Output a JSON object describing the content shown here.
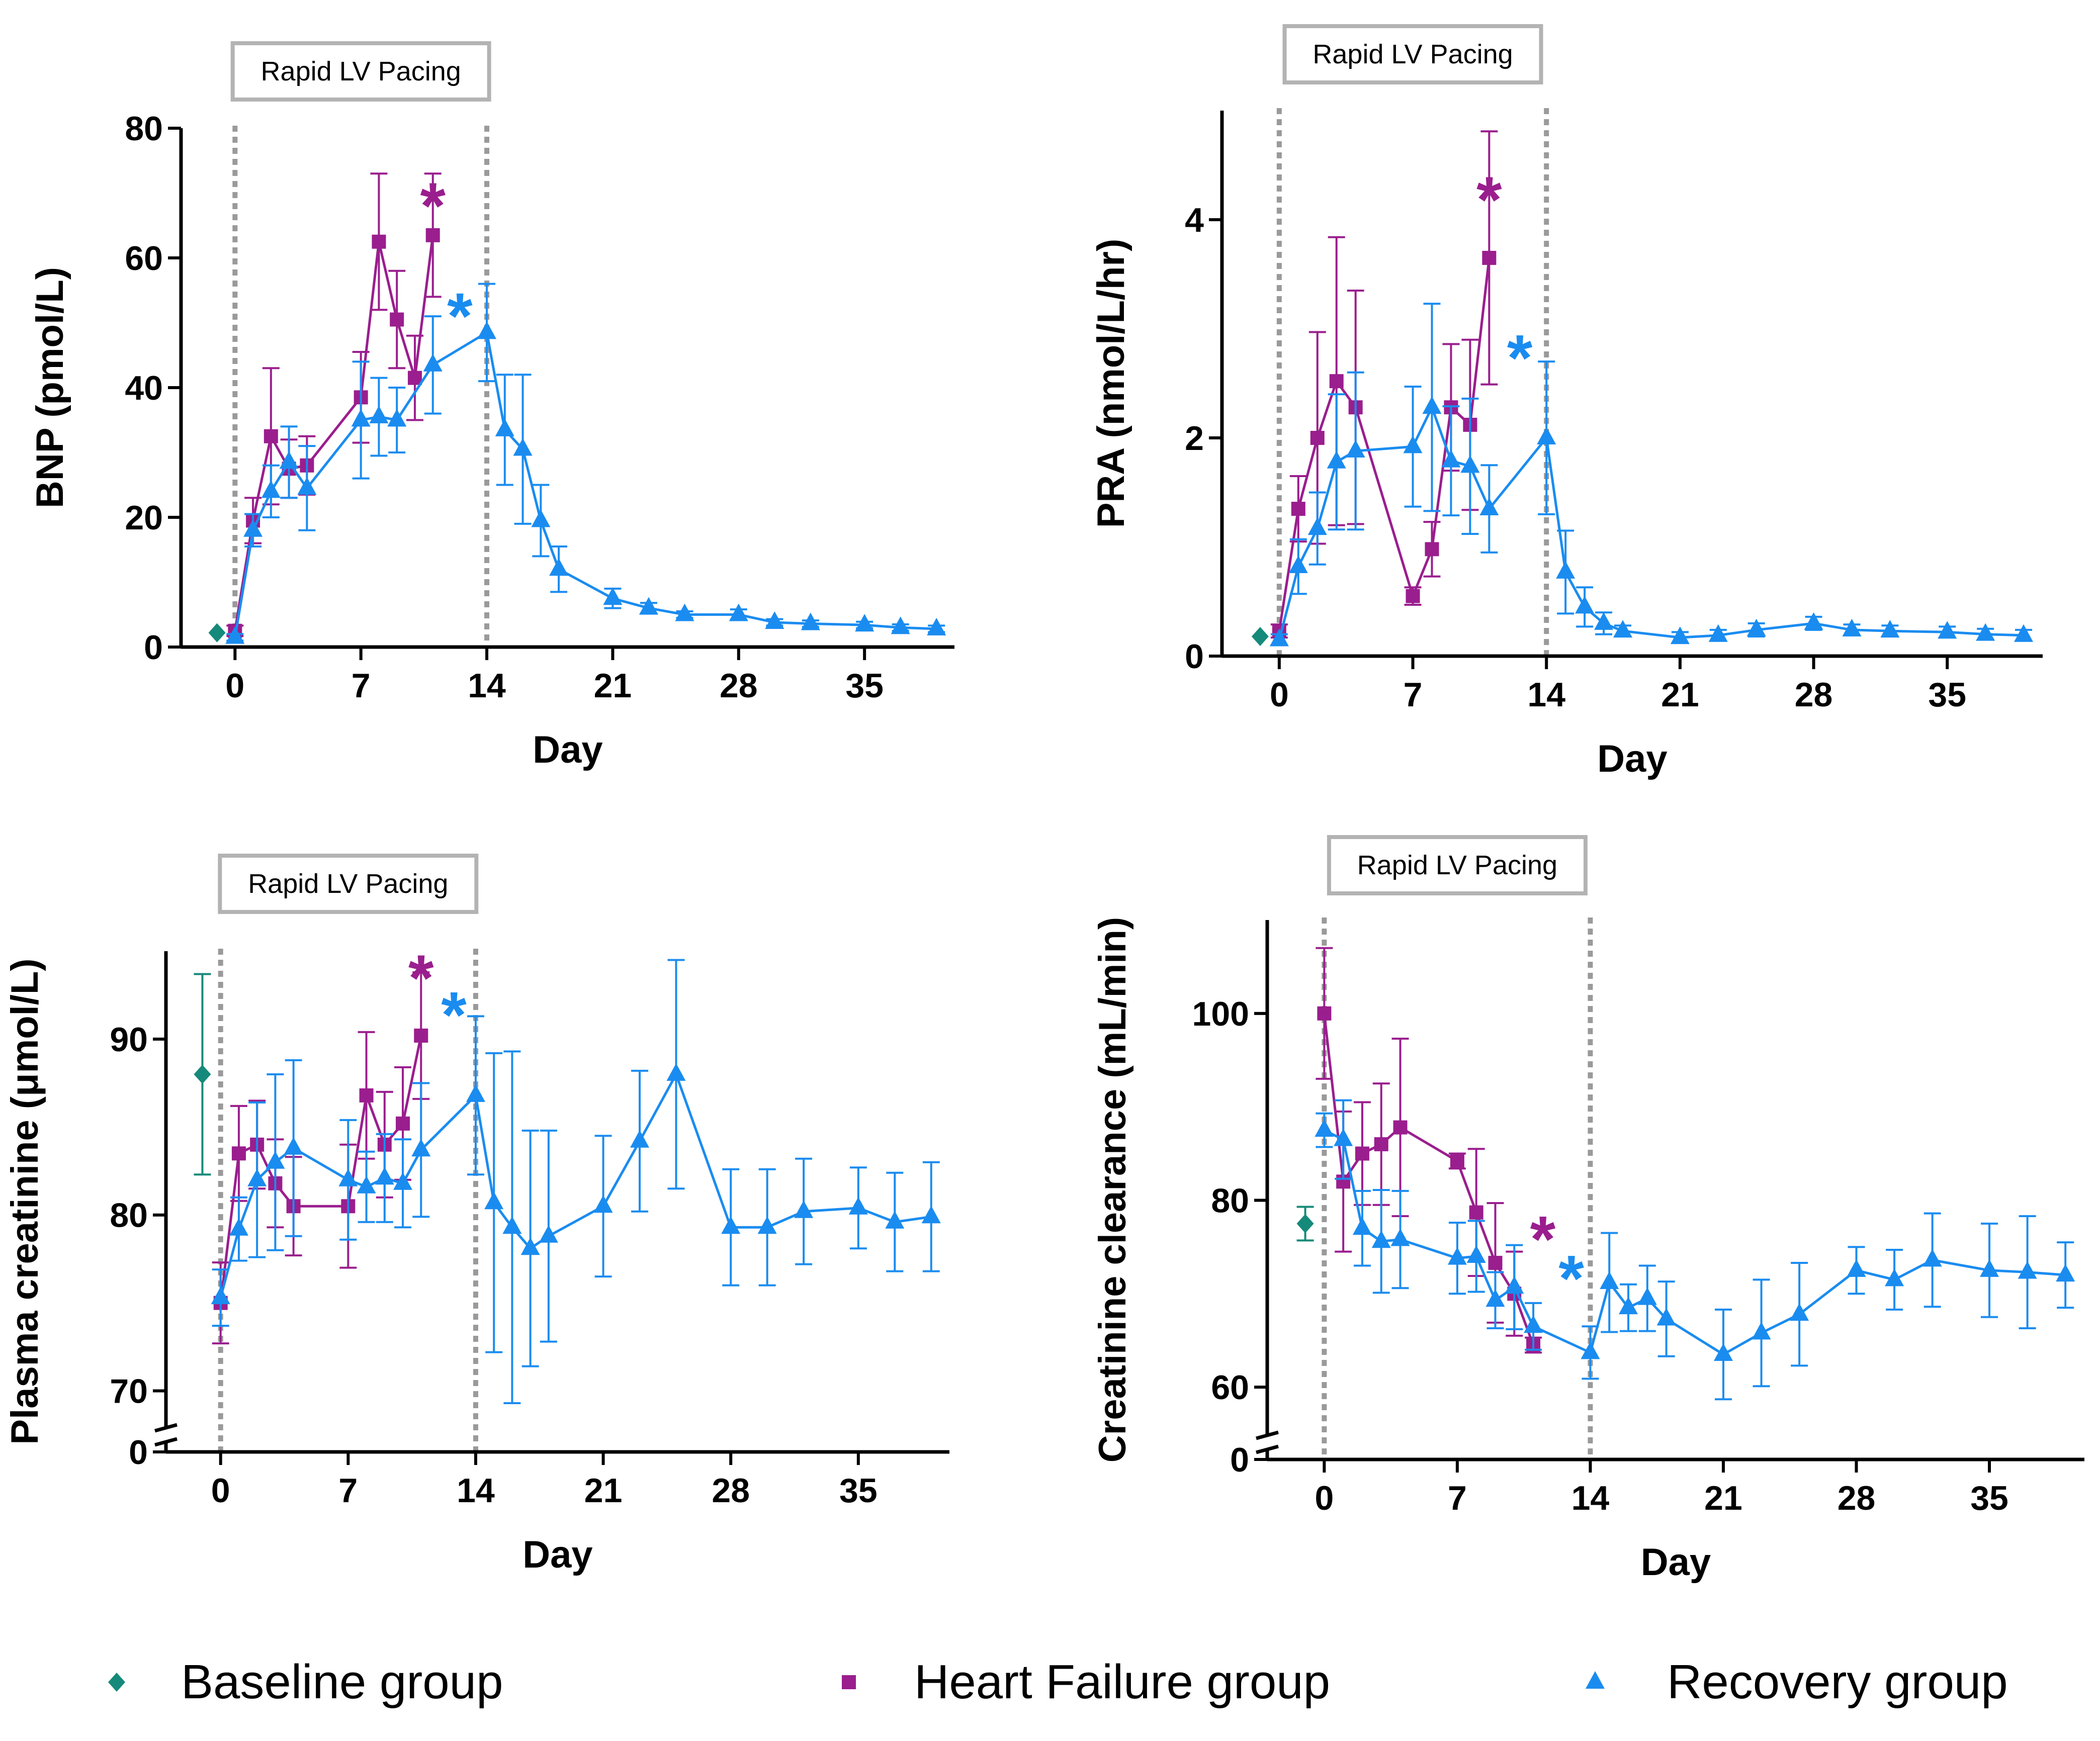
{
  "colors": {
    "baseline": "#158a7a",
    "heart_failure": "#9a1e8e",
    "recovery": "#1a8cf0",
    "pacing_line": "#9a9a9a",
    "pacing_box_border": "#b3b3b3"
  },
  "legend": [
    {
      "key": "baseline",
      "label": "Baseline group",
      "marker": "diamond"
    },
    {
      "key": "heart_failure",
      "label": "Heart Failure group",
      "marker": "square"
    },
    {
      "key": "recovery",
      "label": "Recovery group",
      "marker": "triangle"
    }
  ],
  "chart_data": [
    {
      "type": "line",
      "title": "BNP",
      "xlabel": "Day",
      "ylabel": "BNP (pmol/L)",
      "pacing_label": "Rapid LV Pacing",
      "pacing_days": [
        0,
        14
      ],
      "xlim": [
        -3,
        40
      ],
      "ylim": [
        0,
        80
      ],
      "xticks": [
        0,
        7,
        14,
        21,
        28,
        35
      ],
      "yticks": [
        0,
        20,
        40,
        60,
        80
      ],
      "axis_break": false,
      "series": [
        {
          "key": "baseline",
          "name": "Baseline group",
          "points": [
            {
              "x": -1,
              "y": 2.2,
              "err": 0
            }
          ]
        },
        {
          "key": "heart_failure",
          "name": "Heart Failure group",
          "points": [
            {
              "x": 0,
              "y": 2.5,
              "err": 0.8
            },
            {
              "x": 1,
              "y": 19.5,
              "err": 3.5
            },
            {
              "x": 2,
              "y": 32.5,
              "err": 10.5
            },
            {
              "x": 3,
              "y": 27.5,
              "err": 4.5
            },
            {
              "x": 4,
              "y": 28,
              "err": 4.5
            },
            {
              "x": 7,
              "y": 38.5,
              "err": 7
            },
            {
              "x": 8,
              "y": 62.5,
              "err": 10.5
            },
            {
              "x": 9,
              "y": 50.5,
              "err": 7.5
            },
            {
              "x": 10,
              "y": 41.5,
              "err": 6.5
            },
            {
              "x": 11,
              "y": 63.5,
              "err": 9.5
            }
          ]
        },
        {
          "key": "recovery",
          "name": "Recovery group",
          "points": [
            {
              "x": 0,
              "y": 1.5,
              "err": 0.5
            },
            {
              "x": 1,
              "y": 18,
              "err": 2.5
            },
            {
              "x": 2,
              "y": 24,
              "err": 4
            },
            {
              "x": 3,
              "y": 28.5,
              "err": 5.5
            },
            {
              "x": 4,
              "y": 24.5,
              "err": 6.5
            },
            {
              "x": 7,
              "y": 35,
              "err": 9
            },
            {
              "x": 8,
              "y": 35.5,
              "err": 6
            },
            {
              "x": 9,
              "y": 35,
              "err": 5
            },
            {
              "x": 11,
              "y": 43.5,
              "err": 7.5
            },
            {
              "x": 14,
              "y": 48.5,
              "err": 7.5
            },
            {
              "x": 15,
              "y": 33.5,
              "err": 8.5
            },
            {
              "x": 16,
              "y": 30.5,
              "err": 11.5
            },
            {
              "x": 17,
              "y": 19.5,
              "err": 5.5
            },
            {
              "x": 18,
              "y": 12,
              "err": 3.5
            },
            {
              "x": 21,
              "y": 7.5,
              "err": 1.5
            },
            {
              "x": 23,
              "y": 6,
              "err": 0.8
            },
            {
              "x": 25,
              "y": 5,
              "err": 0.5
            },
            {
              "x": 28,
              "y": 5,
              "err": 0.8
            },
            {
              "x": 30,
              "y": 3.8,
              "err": 0.5
            },
            {
              "x": 32,
              "y": 3.6,
              "err": 0.5
            },
            {
              "x": 35,
              "y": 3.4,
              "err": 0.5
            },
            {
              "x": 37,
              "y": 3,
              "err": 0.5
            },
            {
              "x": 39,
              "y": 2.8,
              "err": 0.5
            }
          ]
        }
      ],
      "annotations": [
        {
          "text": "*",
          "key": "heart_failure",
          "x": 11,
          "y": 70
        },
        {
          "text": "*",
          "key": "recovery",
          "x": 12.5,
          "y": 53
        }
      ]
    },
    {
      "type": "line",
      "title": "PRA",
      "xlabel": "Day",
      "ylabel": "PRA (nmol/L/hr)",
      "pacing_label": "Rapid LV Pacing",
      "pacing_days": [
        0,
        14
      ],
      "xlim": [
        -3,
        40
      ],
      "ylim": [
        0,
        5
      ],
      "xticks": [
        0,
        7,
        14,
        21,
        28,
        35
      ],
      "yticks": [
        0,
        2,
        4
      ],
      "axis_break": false,
      "series": [
        {
          "key": "baseline",
          "name": "Baseline group",
          "points": [
            {
              "x": -1,
              "y": 0.18,
              "err": 0
            }
          ]
        },
        {
          "key": "heart_failure",
          "name": "Heart Failure group",
          "points": [
            {
              "x": 0,
              "y": 0.23,
              "err": 0.06
            },
            {
              "x": 1,
              "y": 1.35,
              "err": 0.3
            },
            {
              "x": 2,
              "y": 2.0,
              "err": 0.97
            },
            {
              "x": 3,
              "y": 2.52,
              "err": 1.32
            },
            {
              "x": 4,
              "y": 2.28,
              "err": 1.07
            },
            {
              "x": 7,
              "y": 0.55,
              "err": 0.08
            },
            {
              "x": 8,
              "y": 0.98,
              "err": 0.25
            },
            {
              "x": 9,
              "y": 2.28,
              "err": 0.58
            },
            {
              "x": 10,
              "y": 2.12,
              "err": 0.78
            },
            {
              "x": 11,
              "y": 3.65,
              "err": 1.16
            }
          ]
        },
        {
          "key": "recovery",
          "name": "Recovery group",
          "points": [
            {
              "x": 0,
              "y": 0.15,
              "err": 0.05
            },
            {
              "x": 1,
              "y": 0.82,
              "err": 0.25
            },
            {
              "x": 2,
              "y": 1.17,
              "err": 0.33
            },
            {
              "x": 3,
              "y": 1.78,
              "err": 0.62
            },
            {
              "x": 4,
              "y": 1.88,
              "err": 0.72
            },
            {
              "x": 7,
              "y": 1.92,
              "err": 0.55
            },
            {
              "x": 8,
              "y": 2.28,
              "err": 0.95
            },
            {
              "x": 9,
              "y": 1.79,
              "err": 0.5
            },
            {
              "x": 10,
              "y": 1.74,
              "err": 0.62
            },
            {
              "x": 11,
              "y": 1.35,
              "err": 0.4
            },
            {
              "x": 14,
              "y": 2.0,
              "err": 0.7
            },
            {
              "x": 15,
              "y": 0.77,
              "err": 0.38
            },
            {
              "x": 16,
              "y": 0.45,
              "err": 0.18
            },
            {
              "x": 17,
              "y": 0.3,
              "err": 0.1
            },
            {
              "x": 18,
              "y": 0.23,
              "err": 0.05
            },
            {
              "x": 21,
              "y": 0.17,
              "err": 0.05
            },
            {
              "x": 23,
              "y": 0.19,
              "err": 0.05
            },
            {
              "x": 25,
              "y": 0.24,
              "err": 0.06
            },
            {
              "x": 28,
              "y": 0.3,
              "err": 0.06
            },
            {
              "x": 30,
              "y": 0.24,
              "err": 0.05
            },
            {
              "x": 32,
              "y": 0.23,
              "err": 0.05
            },
            {
              "x": 35,
              "y": 0.22,
              "err": 0.05
            },
            {
              "x": 37,
              "y": 0.2,
              "err": 0.05
            },
            {
              "x": 39,
              "y": 0.19,
              "err": 0.05
            }
          ]
        }
      ],
      "annotations": [
        {
          "text": "*",
          "key": "heart_failure",
          "x": 11,
          "y": 4.3
        },
        {
          "text": "*",
          "key": "recovery",
          "x": 12.6,
          "y": 2.85
        }
      ]
    },
    {
      "type": "line",
      "title": "Plasma creatinine",
      "xlabel": "Day",
      "ylabel": "Plasma creatinine (μmol/L)",
      "pacing_label": "Rapid LV Pacing",
      "pacing_days": [
        0,
        14
      ],
      "xlim": [
        -3,
        40
      ],
      "ylim": [
        0,
        95
      ],
      "yrange_shown": [
        67.5,
        95
      ],
      "xticks": [
        0,
        7,
        14,
        21,
        28,
        35
      ],
      "yticks": [
        0,
        70,
        80,
        90
      ],
      "axis_break": true,
      "series": [
        {
          "key": "baseline",
          "name": "Baseline group",
          "points": [
            {
              "x": -1,
              "y": 88,
              "err": 5.7
            }
          ]
        },
        {
          "key": "heart_failure",
          "name": "Heart Failure group",
          "points": [
            {
              "x": 0,
              "y": 75,
              "err": 2.3
            },
            {
              "x": 1,
              "y": 83.5,
              "err": 2.7
            },
            {
              "x": 2,
              "y": 84,
              "err": 2.5
            },
            {
              "x": 3,
              "y": 81.8,
              "err": 2.5
            },
            {
              "x": 4,
              "y": 80.5,
              "err": 2.8
            },
            {
              "x": 7,
              "y": 80.5,
              "err": 3.5
            },
            {
              "x": 8,
              "y": 86.8,
              "err": 3.6
            },
            {
              "x": 9,
              "y": 84,
              "err": 3
            },
            {
              "x": 10,
              "y": 85.2,
              "err": 3.2
            },
            {
              "x": 11,
              "y": 90.2,
              "err": 3.6
            }
          ]
        },
        {
          "key": "recovery",
          "name": "Recovery group",
          "points": [
            {
              "x": 0,
              "y": 75.3,
              "err": 1.6
            },
            {
              "x": 1,
              "y": 79.2,
              "err": 1.8
            },
            {
              "x": 2,
              "y": 82,
              "err": 4.4
            },
            {
              "x": 3,
              "y": 83,
              "err": 5
            },
            {
              "x": 4,
              "y": 83.8,
              "err": 5
            },
            {
              "x": 7,
              "y": 82,
              "err": 3.4
            },
            {
              "x": 8,
              "y": 81.6,
              "err": 2
            },
            {
              "x": 9,
              "y": 82.1,
              "err": 2.5
            },
            {
              "x": 10,
              "y": 81.8,
              "err": 2.5
            },
            {
              "x": 11,
              "y": 83.7,
              "err": 3.8
            },
            {
              "x": 14,
              "y": 86.8,
              "err": 4.5
            },
            {
              "x": 15,
              "y": 80.7,
              "err": 8.5
            },
            {
              "x": 16,
              "y": 79.3,
              "err": 10
            },
            {
              "x": 17,
              "y": 78.1,
              "err": 6.7
            },
            {
              "x": 18,
              "y": 78.8,
              "err": 6
            },
            {
              "x": 21,
              "y": 80.5,
              "err": 4
            },
            {
              "x": 23,
              "y": 84.2,
              "err": 4
            },
            {
              "x": 25,
              "y": 88,
              "err": 6.5
            },
            {
              "x": 28,
              "y": 79.3,
              "err": 3.3
            },
            {
              "x": 30,
              "y": 79.3,
              "err": 3.3
            },
            {
              "x": 32,
              "y": 80.2,
              "err": 3
            },
            {
              "x": 35,
              "y": 80.4,
              "err": 2.3
            },
            {
              "x": 37,
              "y": 79.6,
              "err": 2.8
            },
            {
              "x": 39,
              "y": 79.9,
              "err": 3.1
            }
          ]
        }
      ],
      "annotations": [
        {
          "text": "*",
          "key": "heart_failure",
          "x": 11,
          "y": 94.2
        },
        {
          "text": "*",
          "key": "recovery",
          "x": 12.8,
          "y": 92.1
        }
      ]
    },
    {
      "type": "line",
      "title": "Creatinine clearance",
      "xlabel": "Day",
      "ylabel": "Creatinine clearance (mL/min)",
      "pacing_label": "Rapid LV Pacing",
      "pacing_days": [
        0,
        14
      ],
      "xlim": [
        -3,
        40
      ],
      "ylim": [
        0,
        110
      ],
      "yrange_shown": [
        55,
        110
      ],
      "xticks": [
        0,
        7,
        14,
        21,
        28,
        35
      ],
      "yticks": [
        0,
        60,
        80,
        100
      ],
      "axis_break": true,
      "series": [
        {
          "key": "baseline",
          "name": "Baseline group",
          "points": [
            {
              "x": -1,
              "y": 77.5,
              "err": 1.8
            }
          ]
        },
        {
          "key": "heart_failure",
          "name": "Heart Failure group",
          "points": [
            {
              "x": 0,
              "y": 100,
              "err": 7
            },
            {
              "x": 1,
              "y": 82,
              "err": 7.5
            },
            {
              "x": 2,
              "y": 85,
              "err": 5.5
            },
            {
              "x": 3,
              "y": 86,
              "err": 6.5
            },
            {
              "x": 4,
              "y": 87.8,
              "err": 9.5
            },
            {
              "x": 7,
              "y": 84.2,
              "err": 0.8
            },
            {
              "x": 8,
              "y": 78.7,
              "err": 6.8
            },
            {
              "x": 9,
              "y": 73.3,
              "err": 6.4
            },
            {
              "x": 10,
              "y": 70,
              "err": 4.5
            },
            {
              "x": 11,
              "y": 64.5,
              "err": 0.8
            }
          ]
        },
        {
          "key": "recovery",
          "name": "Recovery group",
          "points": [
            {
              "x": 0,
              "y": 87.5,
              "err": 1.8
            },
            {
              "x": 1,
              "y": 86.5,
              "err": 4.2
            },
            {
              "x": 2,
              "y": 77,
              "err": 4
            },
            {
              "x": 3,
              "y": 75.6,
              "err": 5.5
            },
            {
              "x": 4,
              "y": 75.8,
              "err": 5.2
            },
            {
              "x": 7,
              "y": 73.8,
              "err": 3.8
            },
            {
              "x": 8,
              "y": 74,
              "err": 3.8
            },
            {
              "x": 9,
              "y": 69.3,
              "err": 3
            },
            {
              "x": 10,
              "y": 70.7,
              "err": 4.5
            },
            {
              "x": 11,
              "y": 66.5,
              "err": 2.5
            },
            {
              "x": 14,
              "y": 63.7,
              "err": 2.8
            },
            {
              "x": 15,
              "y": 71.2,
              "err": 5.3
            },
            {
              "x": 16,
              "y": 68.5,
              "err": 2.5
            },
            {
              "x": 17,
              "y": 69.5,
              "err": 3.5
            },
            {
              "x": 18,
              "y": 67.3,
              "err": 4
            },
            {
              "x": 21,
              "y": 63.5,
              "err": 4.8
            },
            {
              "x": 23,
              "y": 65.8,
              "err": 5.7
            },
            {
              "x": 25,
              "y": 67.8,
              "err": 5.5
            },
            {
              "x": 28,
              "y": 72.5,
              "err": 2.5
            },
            {
              "x": 30,
              "y": 71.5,
              "err": 3.2
            },
            {
              "x": 32,
              "y": 73.6,
              "err": 5
            },
            {
              "x": 35,
              "y": 72.5,
              "err": 5
            },
            {
              "x": 37,
              "y": 72.3,
              "err": 6
            },
            {
              "x": 39,
              "y": 72,
              "err": 3.5
            }
          ]
        }
      ],
      "annotations": [
        {
          "text": "*",
          "key": "heart_failure",
          "x": 11.5,
          "y": 77.2
        },
        {
          "text": "*",
          "key": "recovery",
          "x": 13,
          "y": 73
        }
      ]
    }
  ]
}
